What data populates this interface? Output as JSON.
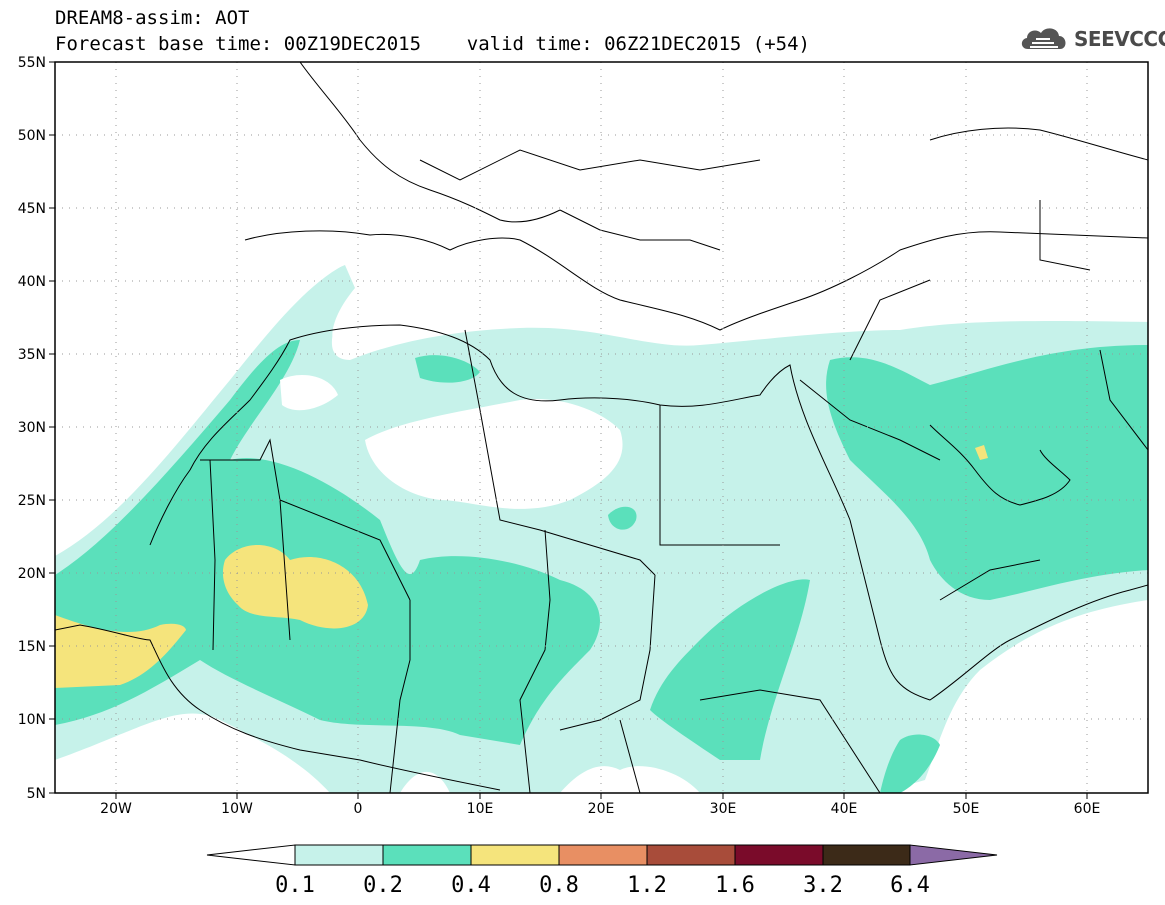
{
  "title": {
    "line1": "DREAM8-assim: AOT",
    "line2": "Forecast base time: 00Z19DEC2015    valid time: 06Z21DEC2015 (+54)"
  },
  "logo": {
    "text": "SEEVCCC",
    "icon": "cloud-icon"
  },
  "map": {
    "region": "North Africa, Europe and Middle East",
    "lon_range": [
      -25,
      65
    ],
    "lat_range": [
      5,
      55
    ],
    "grid": true,
    "lat_labels": [
      "55N",
      "50N",
      "45N",
      "40N",
      "35N",
      "30N",
      "25N",
      "20N",
      "15N",
      "10N",
      "5N"
    ],
    "lon_labels": [
      "20W",
      "10W",
      "0",
      "10E",
      "20E",
      "30E",
      "40E",
      "50E",
      "60E"
    ]
  },
  "colorbar": {
    "labels": [
      "0.1",
      "0.2",
      "0.4",
      "0.8",
      "1.2",
      "1.6",
      "3.2",
      "6.4"
    ],
    "colors": [
      "#c6f2ea",
      "#5be0bb",
      "#f5e47c",
      "#e88f63",
      "#a84c3a",
      "#7a0b2a",
      "#3c2a18",
      "#8b6aa6"
    ],
    "open_low_color": "#ffffff"
  },
  "field_colors": {
    "lt": "#c6f2ea",
    "md": "#5be0bb",
    "hi": "#f5e47c"
  }
}
